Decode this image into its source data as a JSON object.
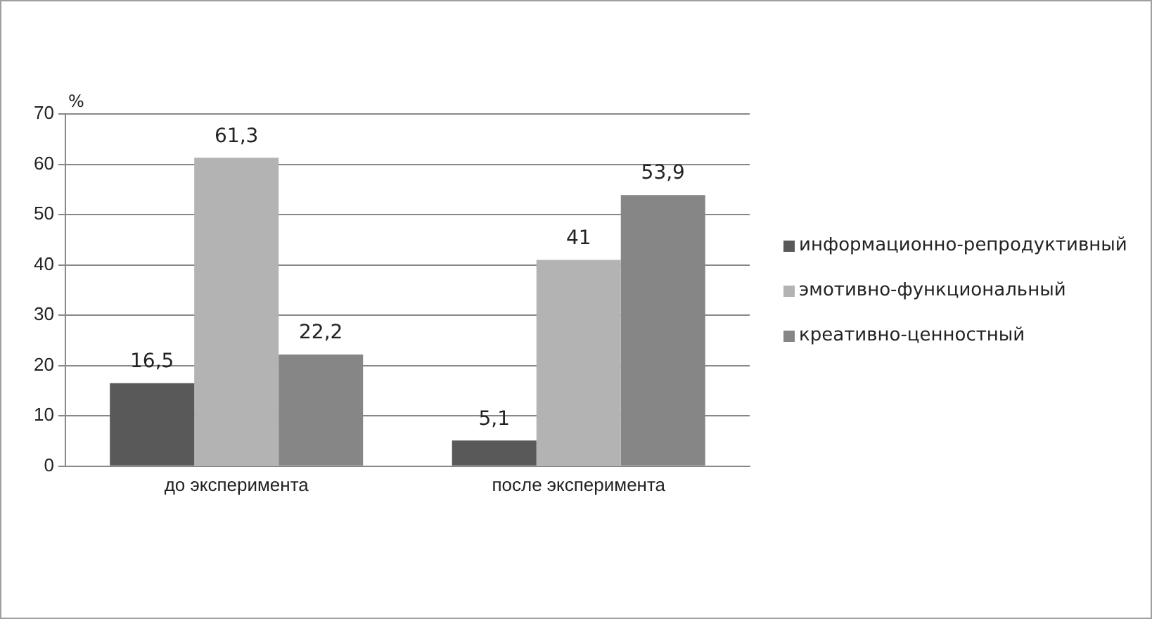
{
  "chart_data": {
    "type": "bar",
    "ylabel": "%",
    "categories": [
      "до эксперимента",
      "после эксперимента"
    ],
    "series": [
      {
        "name": "информационно-репродуктивный",
        "color": "#595959",
        "values": [
          16.5,
          5.1
        ],
        "value_labels": [
          "16,5",
          "5,1"
        ]
      },
      {
        "name": "эмотивно-функциональный",
        "color": "#b3b3b3",
        "values": [
          61.3,
          41
        ],
        "value_labels": [
          "61,3",
          "41"
        ]
      },
      {
        "name": "креативно-ценностный",
        "color": "#868686",
        "values": [
          22.2,
          53.9
        ],
        "value_labels": [
          "22,2",
          "53,9"
        ]
      }
    ],
    "ylim": [
      0,
      70
    ],
    "yticks": [
      0,
      10,
      20,
      30,
      40,
      50,
      60,
      70
    ],
    "grid": "y",
    "legend": "right"
  }
}
